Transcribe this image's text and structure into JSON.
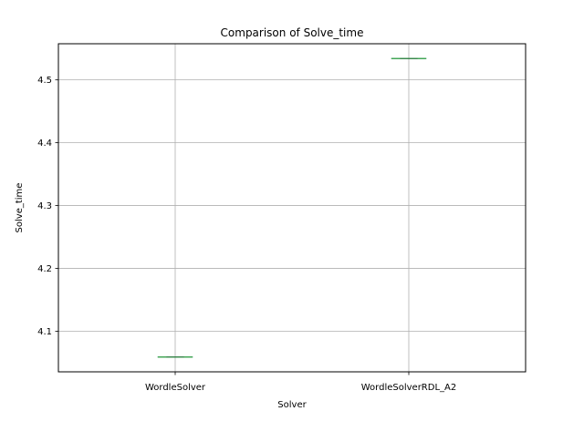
{
  "chart_data": {
    "type": "boxplot",
    "title": "Comparison of Solve_time",
    "xlabel": "Solver",
    "ylabel": "Solve_time",
    "categories": [
      "WordleSolver",
      "WordleSolverRDL_A2"
    ],
    "values": [
      4.059,
      4.534
    ],
    "ylim": [
      4.0355,
      4.5575
    ],
    "yticks": [
      4.1,
      4.2,
      4.3,
      4.4,
      4.5
    ],
    "ytick_labels": [
      "4.1",
      "4.2",
      "4.3",
      "4.4",
      "4.5"
    ],
    "grid": true,
    "colors": {
      "median": "#2ca02c",
      "box": "#1f77b4",
      "grid": "#b0b0b0",
      "axes": "#000000"
    }
  }
}
